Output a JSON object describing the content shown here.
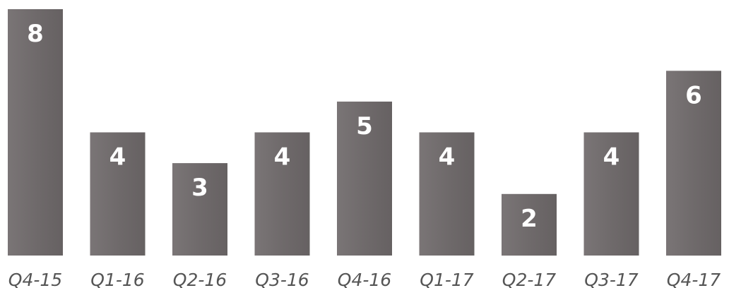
{
  "chart_data": {
    "type": "bar",
    "categories": [
      "Q4-15",
      "Q1-16",
      "Q2-16",
      "Q3-16",
      "Q4-16",
      "Q1-17",
      "Q2-17",
      "Q3-17",
      "Q4-17"
    ],
    "values": [
      8,
      4,
      3,
      4,
      5,
      4,
      2,
      4,
      6
    ],
    "title": "",
    "xlabel": "",
    "ylabel": "",
    "ylim": [
      0,
      8
    ],
    "grid": false,
    "legend": "none",
    "bar_color": "#6f6a6b",
    "label_color": "#ffffff",
    "tick_color": "#555555"
  }
}
